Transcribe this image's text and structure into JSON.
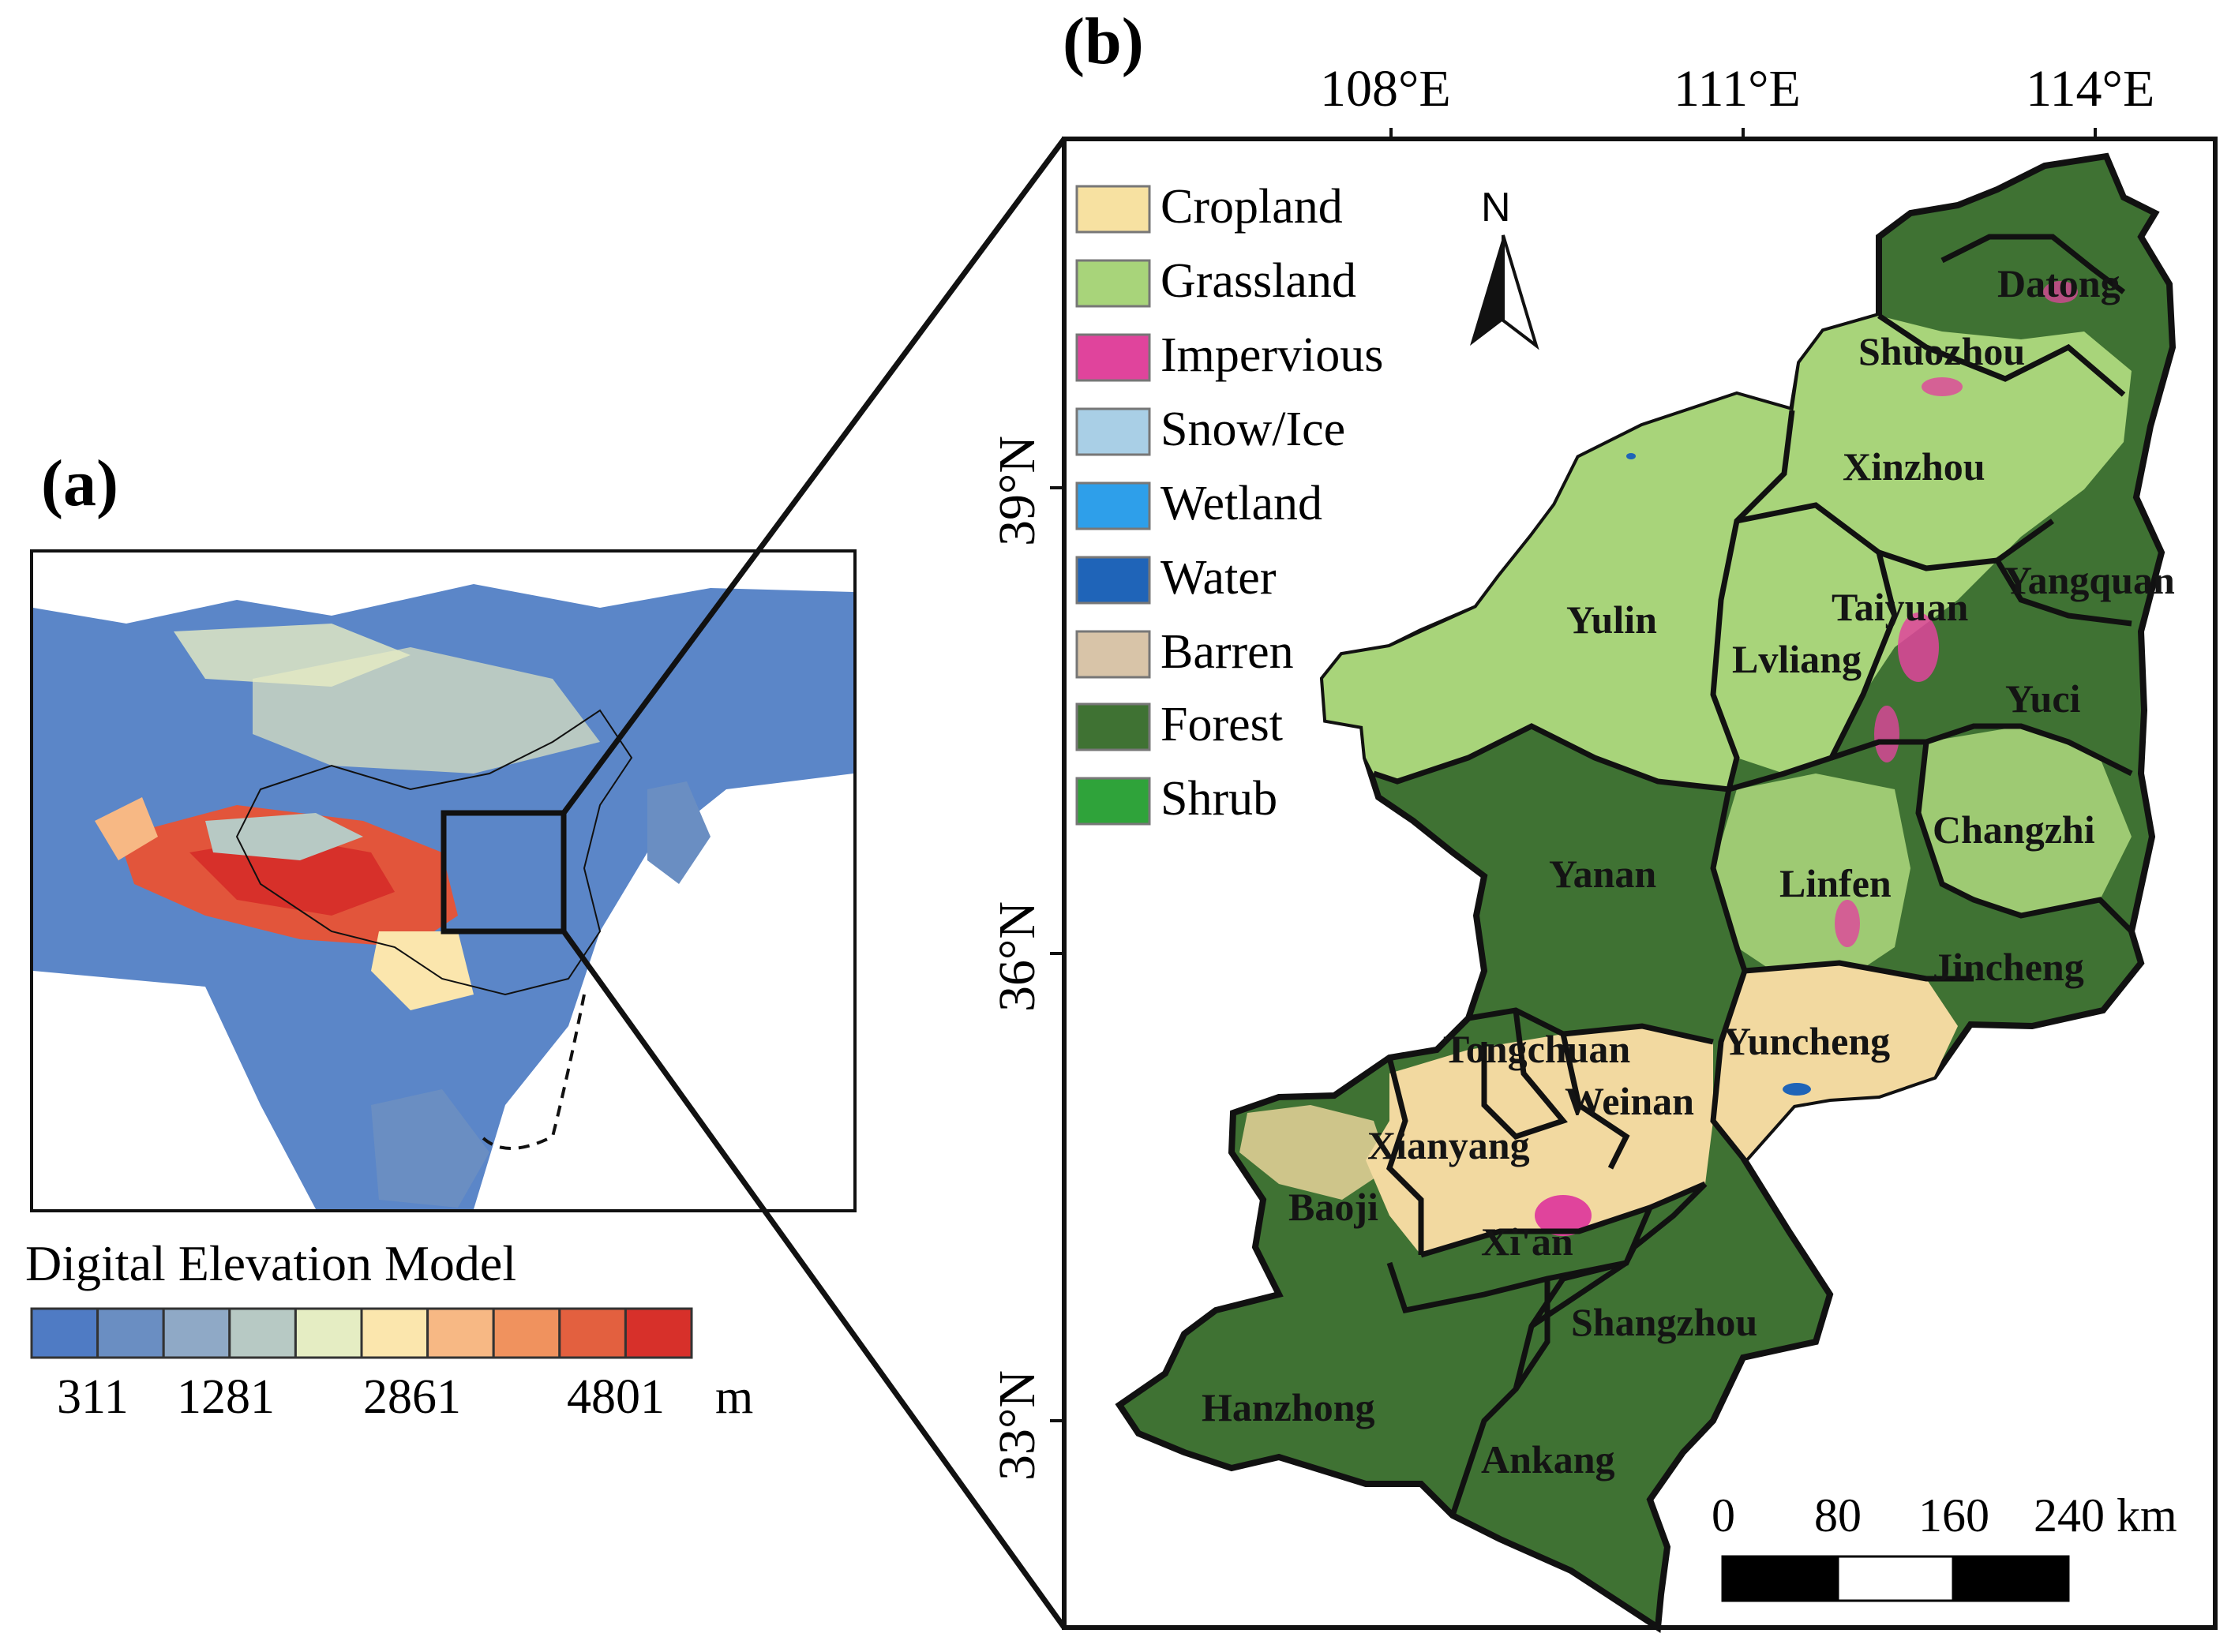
{
  "panels": {
    "a": {
      "label": "(a)"
    },
    "b": {
      "label": "(b)"
    }
  },
  "dem_legend": {
    "title": "Digital Elevation Model",
    "ticks": [
      "311",
      "1281",
      "2861",
      "4801"
    ],
    "unit": "m",
    "colors": [
      "#4f7bc4",
      "#6a8ec2",
      "#8fa9c6",
      "#b7c9c4",
      "#e5edc3",
      "#fbe6ad",
      "#f7b884",
      "#f0925e",
      "#e3603f",
      "#d7302a"
    ]
  },
  "longitude_labels": [
    "108°E",
    "111°E",
    "114°E"
  ],
  "latitude_labels": [
    "39°N",
    "36°N",
    "33°N"
  ],
  "north_arrow": {
    "label": "N",
    "icon": "north-arrow-icon"
  },
  "landcover_legend": [
    {
      "label": "Cropland",
      "color": "#f7e1a1"
    },
    {
      "label": "Grassland",
      "color": "#a8d47a"
    },
    {
      "label": "Impervious",
      "color": "#e0449c"
    },
    {
      "label": "Snow/Ice",
      "color": "#a9cfe6"
    },
    {
      "label": "Wetland",
      "color": "#2e9fea"
    },
    {
      "label": "Water",
      "color": "#1f64b8"
    },
    {
      "label": "Barren",
      "color": "#d8c4a8"
    },
    {
      "label": "Forest",
      "color": "#3f7233"
    },
    {
      "label": "Shrub",
      "color": "#2fa33a"
    }
  ],
  "cities": [
    "Datong",
    "Shuozhou",
    "Xinzhou",
    "Yangquan",
    "Taiyuan",
    "Yulin",
    "Lvliang",
    "Yuci",
    "Changzhi",
    "Yanan",
    "Linfen",
    "Jincheng",
    "Tongchuan",
    "Yuncheng",
    "Weinan",
    "Xianyang",
    "Baoji",
    "Xi'an",
    "Shangzhou",
    "Hanzhong",
    "Ankang"
  ],
  "scale_bar": {
    "labels": [
      "0",
      "80",
      "160",
      "240 km"
    ]
  }
}
